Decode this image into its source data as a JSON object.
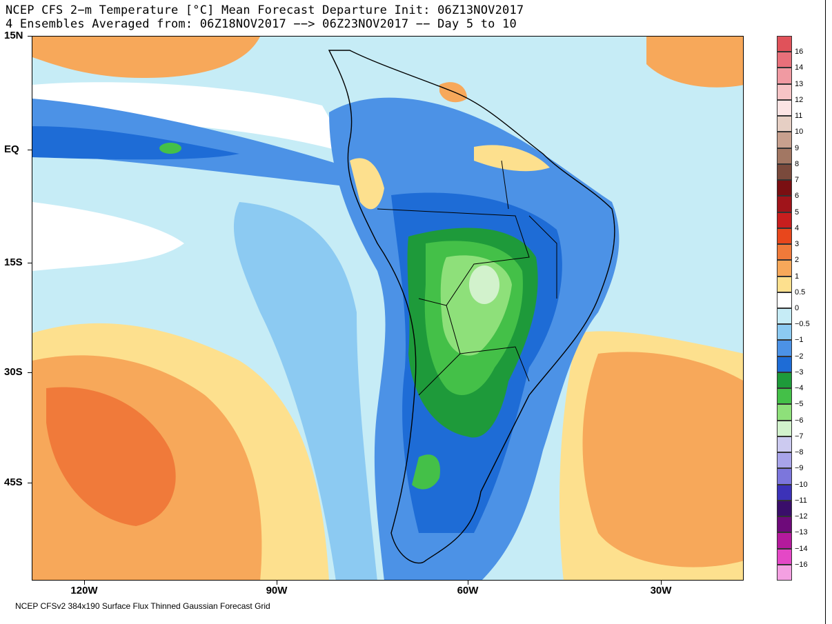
{
  "title": {
    "line1": "NCEP CFS 2−m Temperature [°C] Mean Forecast Departure Init: 06Z13NOV2017",
    "line2": "4 Ensembles Averaged from: 06Z18NOV2017 −−> 06Z23NOV2017 −− Day 5 to 10"
  },
  "lat_labels": [
    "15N",
    "EQ",
    "15S",
    "30S",
    "45S"
  ],
  "lon_labels": [
    "120W",
    "90W",
    "60W",
    "30W"
  ],
  "footer": "NCEP CFSv2 384x190 Surface Flux Thinned Gaussian Forecast Grid",
  "colorbar": {
    "labels": [
      "16",
      "14",
      "13",
      "12",
      "11",
      "10",
      "9",
      "8",
      "7",
      "6",
      "5",
      "4",
      "3",
      "2",
      "1",
      "0.5",
      "0",
      "−0.5",
      "−1",
      "−2",
      "−3",
      "−4",
      "−5",
      "−6",
      "−7",
      "−8",
      "−9",
      "−10",
      "−11",
      "−12",
      "−13",
      "−14",
      "−16"
    ],
    "colors": [
      "#e0525a",
      "#e8707a",
      "#f09aa2",
      "#f6c4c6",
      "#fbe4e4",
      "#e6cfc4",
      "#c7a08e",
      "#a27763",
      "#7a4a3c",
      "#7a0f12",
      "#a0141a",
      "#c81e1e",
      "#e8471c",
      "#f07a3a",
      "#f7a85a",
      "#fde08e",
      "#ffffff",
      "#c6ecf6",
      "#8ccaf2",
      "#4c92e6",
      "#1e6cd6",
      "#1e9a3a",
      "#44c048",
      "#8ee07a",
      "#d2f2cc",
      "#cccaf0",
      "#a8a4ea",
      "#7c76dc",
      "#3c32b8",
      "#3a0e6a",
      "#6e0a7a",
      "#b41a9c",
      "#e448c6",
      "#f4a0e2"
    ]
  },
  "map_colors": {
    "warm_light": "#fde08e",
    "warm": "#f7a85a",
    "warm_strong": "#f07a3a",
    "neutral": "#ffffff",
    "cool_light": "#c6ecf6",
    "cool": "#8ccaf2",
    "cool_strong": "#4c92e6",
    "cold": "#1e6cd6",
    "green_dark": "#1e9a3a",
    "green": "#44c048",
    "green_light": "#8ee07a",
    "green_pale": "#d2f2cc"
  }
}
